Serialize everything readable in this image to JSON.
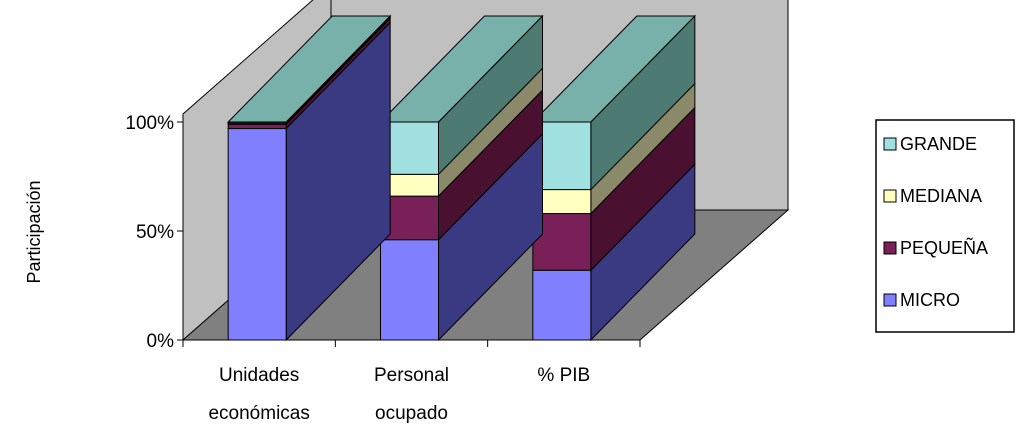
{
  "chart_data": {
    "type": "bar",
    "stacked": true,
    "normalized": true,
    "three_d": true,
    "ylabel": "Participación",
    "ylim": [
      0,
      100
    ],
    "y_ticks": [
      "0%",
      "50%",
      "100%"
    ],
    "categories": [
      [
        "Unidades",
        "económicas"
      ],
      [
        "Personal",
        "ocupado"
      ],
      [
        "% PIB"
      ]
    ],
    "series": [
      {
        "name": "MICRO",
        "values": [
          97,
          46,
          32
        ]
      },
      {
        "name": "PEQUEÑA",
        "values": [
          2,
          20,
          26
        ]
      },
      {
        "name": "MEDIANA",
        "values": [
          0.5,
          10,
          11
        ]
      },
      {
        "name": "GRANDE",
        "values": [
          0.5,
          24,
          31
        ]
      }
    ],
    "colors": {
      "MICRO": {
        "front": "#8080ff",
        "side": "#3a3a82",
        "top": "#5a5ab8"
      },
      "PEQUEÑA": {
        "front": "#7a2058",
        "side": "#4a1030",
        "top": "#5e1840"
      },
      "MEDIANA": {
        "front": "#ffffc0",
        "side": "#8a8a6a",
        "top": "#b0b090"
      },
      "GRANDE": {
        "front": "#a0e0e0",
        "side": "#4e7a74",
        "top": "#78b0aa"
      }
    },
    "legend_position": "right",
    "legend_order": [
      "GRANDE",
      "MEDIANA",
      "PEQUEÑA",
      "MICRO"
    ],
    "wall_color": "#c0c0c0",
    "floor_color": "#808080",
    "grid": false
  }
}
